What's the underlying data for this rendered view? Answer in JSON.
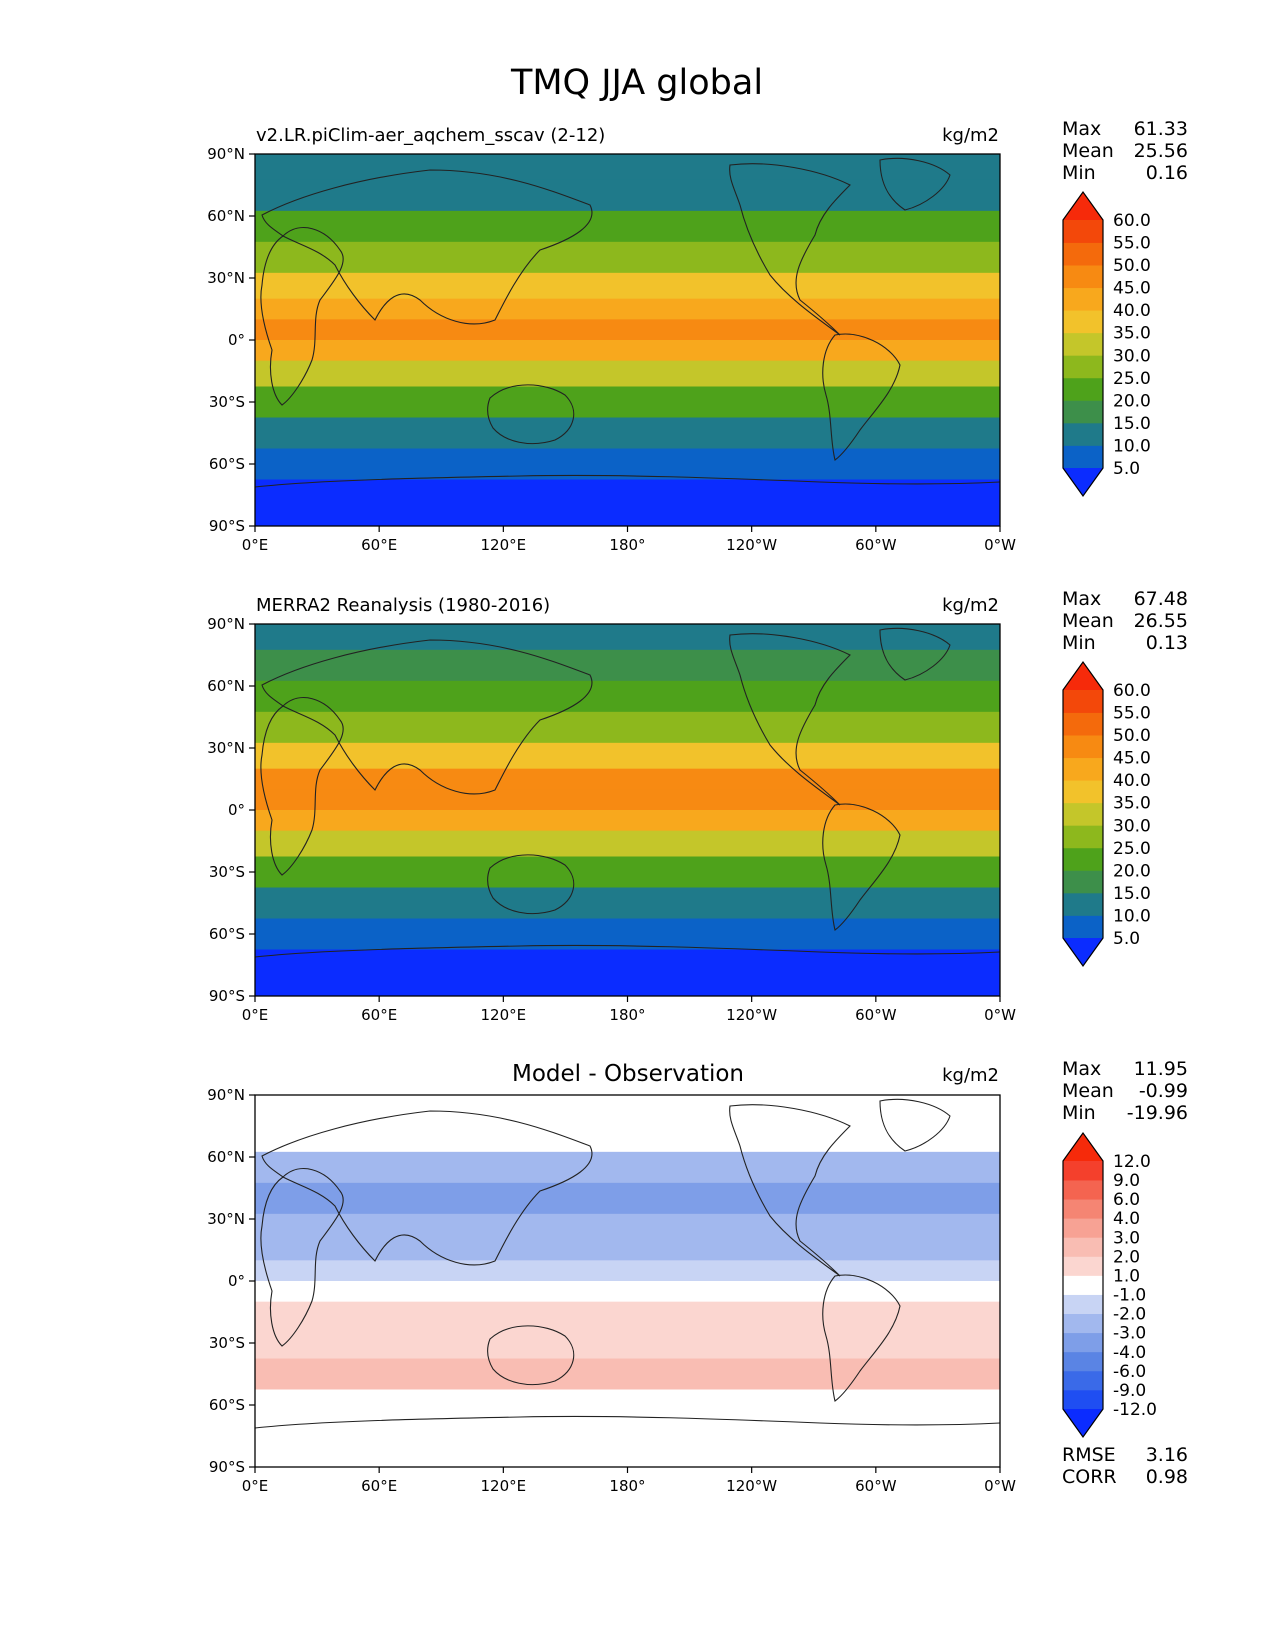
{
  "figure_title": "TMQ JJA global",
  "chart_data": [
    {
      "type": "heatmap",
      "panel": "model",
      "title_left": "v2.LR.piClim-aer_aqchem_sscav (2-12)",
      "title_center": "",
      "units": "kg/m2",
      "xticks": [
        "0°E",
        "60°E",
        "120°E",
        "180°",
        "120°W",
        "60°W",
        "0°W"
      ],
      "yticks": [
        "90°N",
        "60°N",
        "30°N",
        "0°",
        "30°S",
        "60°S",
        "90°S"
      ],
      "xlim": [
        0,
        360
      ],
      "ylim": [
        -90,
        90
      ],
      "stats": [
        {
          "label": "Max",
          "value": "61.33"
        },
        {
          "label": "Mean",
          "value": "25.56"
        },
        {
          "label": "Min",
          "value": "0.16"
        }
      ],
      "colorbar": {
        "levels": [
          5.0,
          10.0,
          15.0,
          20.0,
          25.0,
          30.0,
          35.0,
          40.0,
          45.0,
          50.0,
          55.0,
          60.0
        ],
        "labels": [
          "60.0",
          "55.0",
          "50.0",
          "45.0",
          "40.0",
          "35.0",
          "30.0",
          "25.0",
          "20.0",
          "15.0",
          "10.0",
          "5.0"
        ],
        "colors": [
          "#0b2cff",
          "#0b62c7",
          "#1f7a8a",
          "#3d8f4a",
          "#4ea21b",
          "#8db81d",
          "#c4c62a",
          "#f2c22b",
          "#f8a81d",
          "#f78a12",
          "#f46a0c",
          "#f3480a",
          "#f62a0a"
        ],
        "extend": "both"
      },
      "zonal_mean": [
        {
          "lat": 85,
          "value": 12
        },
        {
          "lat": 70,
          "value": 14
        },
        {
          "lat": 55,
          "value": 20
        },
        {
          "lat": 40,
          "value": 28
        },
        {
          "lat": 25,
          "value": 36
        },
        {
          "lat": 15,
          "value": 44
        },
        {
          "lat": 5,
          "value": 46
        },
        {
          "lat": -5,
          "value": 40
        },
        {
          "lat": -15,
          "value": 32
        },
        {
          "lat": -30,
          "value": 22
        },
        {
          "lat": -45,
          "value": 14
        },
        {
          "lat": -60,
          "value": 8
        },
        {
          "lat": -75,
          "value": 3
        }
      ]
    },
    {
      "type": "heatmap",
      "panel": "observation",
      "title_left": "MERRA2 Reanalysis (1980-2016)",
      "title_center": "",
      "units": "kg/m2",
      "xticks": [
        "0°E",
        "60°E",
        "120°E",
        "180°",
        "120°W",
        "60°W",
        "0°W"
      ],
      "yticks": [
        "90°N",
        "60°N",
        "30°N",
        "0°",
        "30°S",
        "60°S",
        "90°S"
      ],
      "xlim": [
        0,
        360
      ],
      "ylim": [
        -90,
        90
      ],
      "stats": [
        {
          "label": "Max",
          "value": "67.48"
        },
        {
          "label": "Mean",
          "value": "26.55"
        },
        {
          "label": "Min",
          "value": "0.13"
        }
      ],
      "colorbar": {
        "levels": [
          5.0,
          10.0,
          15.0,
          20.0,
          25.0,
          30.0,
          35.0,
          40.0,
          45.0,
          50.0,
          55.0,
          60.0
        ],
        "labels": [
          "60.0",
          "55.0",
          "50.0",
          "45.0",
          "40.0",
          "35.0",
          "30.0",
          "25.0",
          "20.0",
          "15.0",
          "10.0",
          "5.0"
        ],
        "colors": [
          "#0b2cff",
          "#0b62c7",
          "#1f7a8a",
          "#3d8f4a",
          "#4ea21b",
          "#8db81d",
          "#c4c62a",
          "#f2c22b",
          "#f8a81d",
          "#f78a12",
          "#f46a0c",
          "#f3480a",
          "#f62a0a"
        ],
        "extend": "both"
      },
      "zonal_mean": [
        {
          "lat": 85,
          "value": 12
        },
        {
          "lat": 70,
          "value": 15
        },
        {
          "lat": 55,
          "value": 21
        },
        {
          "lat": 40,
          "value": 29
        },
        {
          "lat": 25,
          "value": 37
        },
        {
          "lat": 15,
          "value": 45
        },
        {
          "lat": 5,
          "value": 48
        },
        {
          "lat": -5,
          "value": 41
        },
        {
          "lat": -15,
          "value": 32
        },
        {
          "lat": -30,
          "value": 22
        },
        {
          "lat": -45,
          "value": 14
        },
        {
          "lat": -60,
          "value": 8
        },
        {
          "lat": -75,
          "value": 3
        }
      ]
    },
    {
      "type": "heatmap",
      "panel": "difference",
      "title_left": "",
      "title_center": "Model - Observation",
      "units": "kg/m2",
      "xticks": [
        "0°E",
        "60°E",
        "120°E",
        "180°",
        "120°W",
        "60°W",
        "0°W"
      ],
      "yticks": [
        "90°N",
        "60°N",
        "30°N",
        "0°",
        "30°S",
        "60°S",
        "90°S"
      ],
      "xlim": [
        0,
        360
      ],
      "ylim": [
        -90,
        90
      ],
      "stats": [
        {
          "label": "Max",
          "value": "11.95"
        },
        {
          "label": "Mean",
          "value": "-0.99"
        },
        {
          "label": "Min",
          "value": "-19.96"
        }
      ],
      "bottom_stats": [
        {
          "label": "RMSE",
          "value": "3.16"
        },
        {
          "label": "CORR",
          "value": "0.98"
        }
      ],
      "colorbar": {
        "levels": [
          -12.0,
          -9.0,
          -6.0,
          -4.0,
          -3.0,
          -2.0,
          -1.0,
          1.0,
          2.0,
          3.0,
          4.0,
          6.0,
          9.0,
          12.0
        ],
        "labels": [
          "12.0",
          "9.0",
          "6.0",
          "4.0",
          "3.0",
          "2.0",
          "1.0",
          "-1.0",
          "-2.0",
          "-3.0",
          "-4.0",
          "-6.0",
          "-9.0",
          "-12.0"
        ],
        "colors": [
          "#0b2cff",
          "#1f4ef2",
          "#3a6ae8",
          "#5a84e4",
          "#7e9ee8",
          "#a2b8ee",
          "#c8d4f4",
          "#ffffff",
          "#fbd6d0",
          "#f9bdb3",
          "#f7a294",
          "#f58573",
          "#f46450",
          "#f4402c",
          "#f62a0a"
        ],
        "extend": "both"
      },
      "zonal_mean": [
        {
          "lat": 85,
          "value": 0.5
        },
        {
          "lat": 70,
          "value": -1.0
        },
        {
          "lat": 55,
          "value": -3.0
        },
        {
          "lat": 40,
          "value": -4.0
        },
        {
          "lat": 25,
          "value": -3.0
        },
        {
          "lat": 15,
          "value": -2.5
        },
        {
          "lat": 5,
          "value": -1.5
        },
        {
          "lat": -5,
          "value": -1.0
        },
        {
          "lat": -15,
          "value": 1.0
        },
        {
          "lat": -30,
          "value": 1.5
        },
        {
          "lat": -45,
          "value": 2.0
        },
        {
          "lat": -60,
          "value": 0.5
        },
        {
          "lat": -75,
          "value": 0.0
        }
      ]
    }
  ]
}
